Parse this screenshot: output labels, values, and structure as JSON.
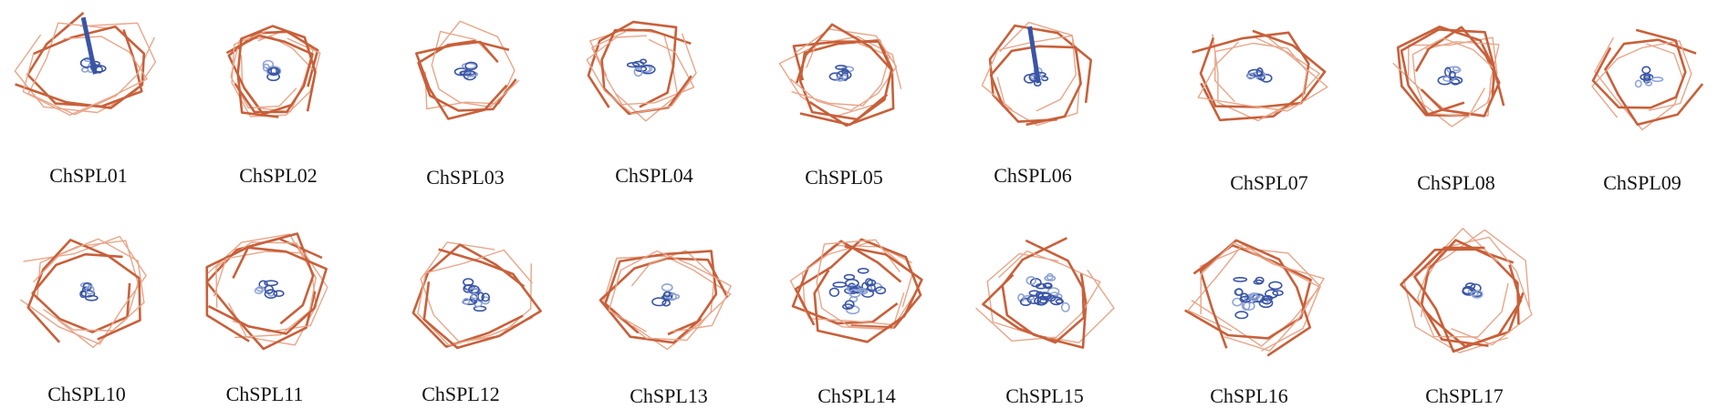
{
  "figure": {
    "labels": [
      "ChSPL01",
      "ChSPL02",
      "ChSPL03",
      "ChSPL04",
      "ChSPL05",
      "ChSPL06",
      "ChSPL07",
      "ChSPL08",
      "ChSPL09",
      "ChSPL10",
      "ChSPL11",
      "ChSPL12",
      "ChSPL13",
      "ChSPL14",
      "ChSPL15",
      "ChSPL16",
      "ChSPL17"
    ]
  },
  "colors": {
    "coil": "#c8603a",
    "coil_light": "#e8a68a",
    "core": "#3a55a5",
    "core_light": "#8fa4d6"
  }
}
